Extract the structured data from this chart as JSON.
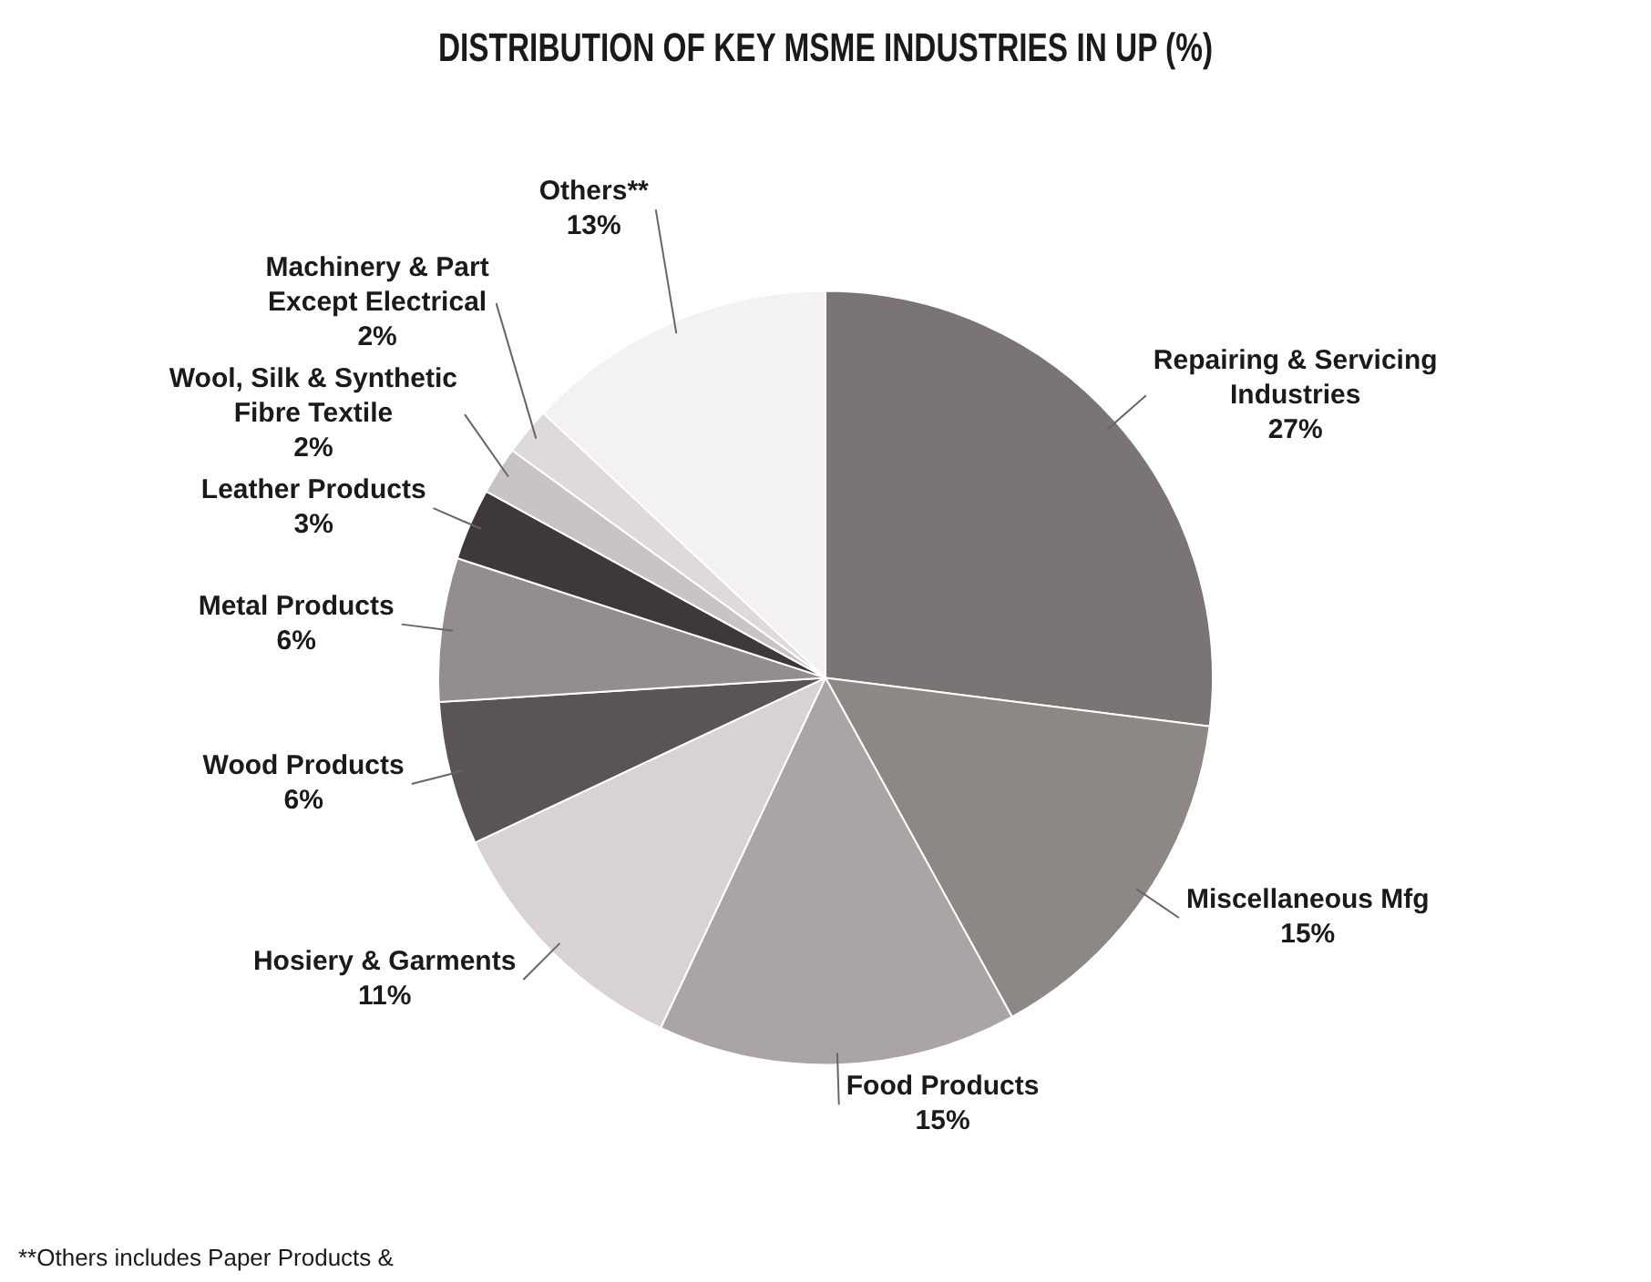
{
  "chart_data": {
    "type": "pie",
    "title": "DISTRIBUTION OF KEY MSME INDUSTRIES IN UP (%)",
    "categories": [
      "Repairing & Servicing Industries",
      "Miscellaneous Mfg",
      "Food Products",
      "Hosiery & Garments",
      "Wood Products",
      "Metal Products",
      "Leather Products",
      "Wool, Silk & Synthetic Fibre Textile",
      "Machinery & Part Except Electrical",
      "Others**"
    ],
    "values": [
      27,
      15,
      15,
      11,
      6,
      6,
      3,
      2,
      2,
      13
    ],
    "colors": [
      "#7a7474",
      "#8d8786",
      "#aba4a4",
      "#d8d2d2",
      "#5a5454",
      "#948d8d",
      "#3e3838",
      "#c9c3c3",
      "#dedada",
      "#f3f1f1"
    ],
    "value_labels": [
      "27%",
      "15%",
      "15%",
      "11%",
      "6%",
      "6%",
      "3%",
      "2%",
      "2%",
      "13%"
    ],
    "annotations": [
      "**Others includes Paper Products &"
    ]
  }
}
